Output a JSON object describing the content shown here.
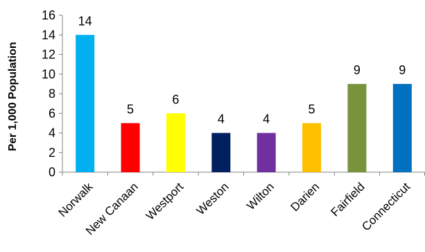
{
  "chart_data": {
    "type": "bar",
    "title": "",
    "xlabel": "",
    "ylabel": "Per 1,000 Population",
    "ylim": [
      0,
      16
    ],
    "yticks": [
      0,
      2,
      4,
      6,
      8,
      10,
      12,
      14,
      16
    ],
    "grid": false,
    "legend": "none",
    "categories": [
      "Norwalk",
      "New Canaan",
      "Westport",
      "Weston",
      "Wilton",
      "Darien",
      "Fairfield",
      "Connecticut"
    ],
    "values": [
      14,
      5,
      6,
      4,
      4,
      5,
      9,
      9
    ],
    "colors": [
      "#00B0F0",
      "#FF0000",
      "#FFFF00",
      "#002060",
      "#7030A0",
      "#FFC000",
      "#77933C",
      "#0070C0"
    ]
  }
}
